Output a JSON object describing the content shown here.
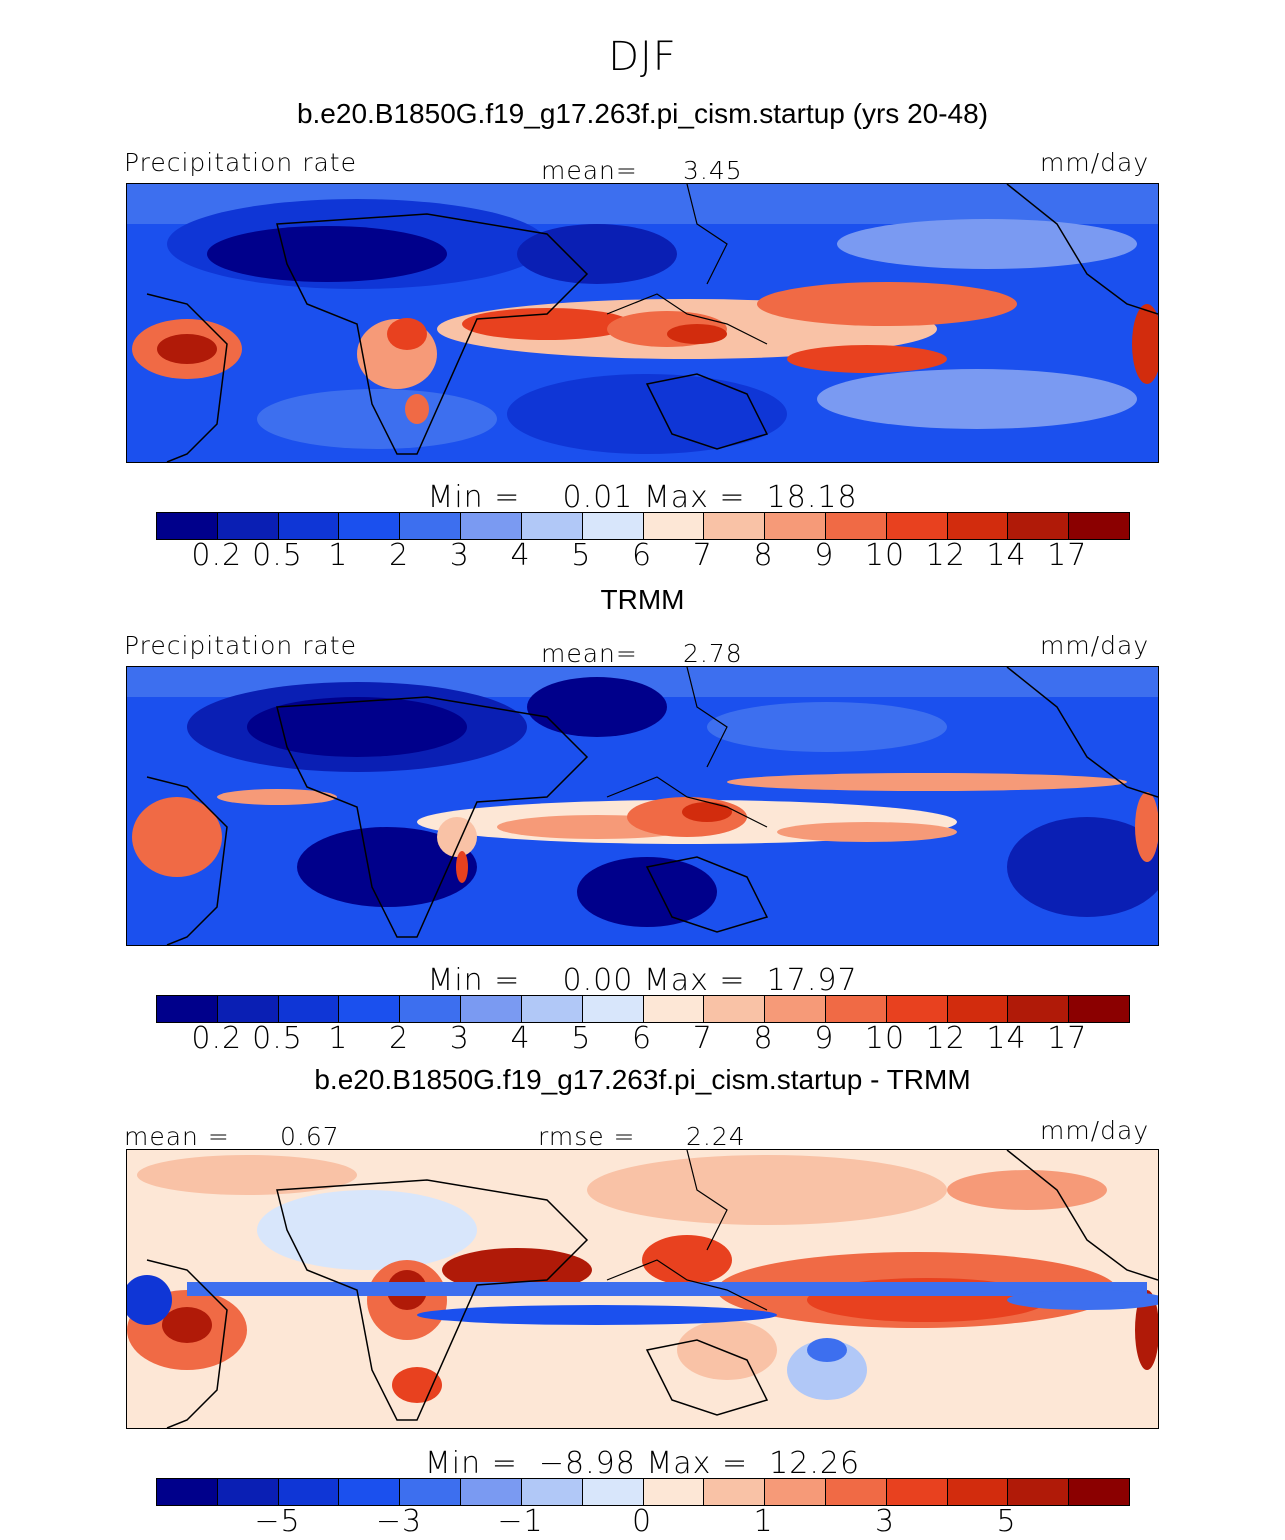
{
  "season_title": "DJF",
  "panels": [
    {
      "id": "model",
      "title": "b.e20.B1850G.f19_g17.263f.pi_cism.startup (yrs 20-48)",
      "left_label": "Precipitation rate",
      "center_label": "mean=",
      "center_value": "3.45",
      "right_label": "mm/day",
      "min_label": "Min =",
      "min_value": "0.01",
      "max_label": "Max =",
      "max_value": "18.18",
      "colorbar_ticks": [
        "0.2",
        "0.5",
        "1",
        "2",
        "3",
        "4",
        "5",
        "6",
        "7",
        "8",
        "9",
        "10",
        "12",
        "14",
        "17"
      ]
    },
    {
      "id": "obs",
      "title": "TRMM",
      "left_label": "Precipitation rate",
      "center_label": "mean=",
      "center_value": "2.78",
      "right_label": "mm/day",
      "min_label": "Min =",
      "min_value": "0.00",
      "max_label": "Max =",
      "max_value": "17.97",
      "colorbar_ticks": [
        "0.2",
        "0.5",
        "1",
        "2",
        "3",
        "4",
        "5",
        "6",
        "7",
        "8",
        "9",
        "10",
        "12",
        "14",
        "17"
      ]
    },
    {
      "id": "diff",
      "title": "b.e20.B1850G.f19_g17.263f.pi_cism.startup - TRMM",
      "left_label": "mean =",
      "left_value": "0.67",
      "center_label": "rmse =",
      "center_value": "2.24",
      "right_label": "mm/day",
      "min_label": "Min =",
      "min_value": "−8.98",
      "max_label": "Max =",
      "max_value": "12.26",
      "colorbar_ticks": [
        "−5",
        "−3",
        "−1",
        "0",
        "1",
        "3",
        "5"
      ]
    }
  ],
  "colors": {
    "palette": [
      "#00008b",
      "#0a1fb4",
      "#0f36d6",
      "#1b50ee",
      "#3d6fef",
      "#7a9af2",
      "#b1c8f7",
      "#d8e6fb",
      "#fde7d6",
      "#f9c2a6",
      "#f69a78",
      "#f06a45",
      "#e8411f",
      "#d22c0d",
      "#b01a08",
      "#8b0000"
    ],
    "coastline": "#000000"
  }
}
